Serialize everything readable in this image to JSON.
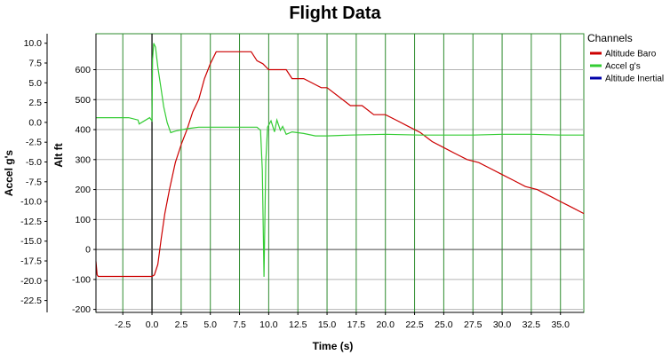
{
  "chart_data": {
    "type": "line",
    "title": "Flight Data",
    "xlabel": "Time (s)",
    "ylabel_left": "Accel g's",
    "ylabel_right": "Alt ft",
    "xlim": [
      -4.8,
      37
    ],
    "ylim_alt": [
      -210,
      720
    ],
    "ylim_accel": [
      -24,
      11.2
    ],
    "x_ticks": [
      "-2.5",
      "0.0",
      "2.5",
      "5.0",
      "7.5",
      "10.0",
      "12.5",
      "15.0",
      "17.5",
      "20.0",
      "22.5",
      "25.0",
      "27.5",
      "30.0",
      "32.5",
      "35.0"
    ],
    "accel_ticks": [
      "10.0",
      "7.5",
      "5.0",
      "2.5",
      "0.0",
      "-2.5",
      "-5.0",
      "-7.5",
      "-10.0",
      "-12.5",
      "-15.0",
      "-17.5",
      "-20.0",
      "-22.5"
    ],
    "alt_ticks": [
      "600",
      "500",
      "400",
      "300",
      "200",
      "100",
      "0",
      "-100",
      "-200"
    ],
    "grid": true,
    "legend": {
      "title": "Channels",
      "position": "top-right"
    },
    "series": [
      {
        "name": "Altitude Baro",
        "axis": "alt",
        "color": "#cc0000",
        "x": [
          -4.8,
          -4.7,
          -4.6,
          -1.0,
          0.0,
          0.2,
          0.5,
          0.8,
          1.1,
          1.5,
          2.0,
          2.5,
          3.0,
          3.5,
          4.0,
          4.5,
          5.0,
          5.5,
          6.0,
          6.5,
          7.0,
          7.5,
          8.0,
          8.5,
          9.0,
          9.5,
          10.0,
          10.5,
          11.0,
          11.5,
          12.0,
          12.5,
          13.0,
          13.5,
          14.0,
          14.5,
          15.0,
          16.0,
          17.0,
          18.0,
          19.0,
          20.0,
          21.0,
          22.0,
          23.0,
          24.0,
          25.0,
          26.0,
          27.0,
          28.0,
          29.0,
          30.0,
          31.0,
          32.0,
          33.0,
          34.0,
          35.0,
          36.0,
          37.0
        ],
        "y": [
          -40,
          -85,
          -90,
          -90,
          -90,
          -85,
          -50,
          40,
          120,
          200,
          290,
          350,
          400,
          460,
          500,
          570,
          620,
          660,
          660,
          660,
          660,
          660,
          660,
          660,
          630,
          620,
          600,
          600,
          600,
          600,
          570,
          570,
          570,
          560,
          550,
          540,
          540,
          510,
          480,
          480,
          450,
          450,
          430,
          410,
          390,
          360,
          340,
          320,
          300,
          290,
          270,
          250,
          230,
          210,
          200,
          180,
          160,
          140,
          120
        ]
      },
      {
        "name": "Accel g's",
        "axis": "accel",
        "color": "#33cc33",
        "x": [
          -4.8,
          -2.0,
          -1.2,
          -1.1,
          -0.2,
          0.0,
          0.05,
          0.15,
          0.3,
          0.5,
          0.8,
          1.0,
          1.3,
          1.6,
          2.0,
          3.0,
          4.0,
          6.0,
          8.0,
          9.0,
          9.3,
          9.45,
          9.6,
          9.75,
          9.9,
          10.2,
          10.5,
          10.7,
          11.0,
          11.2,
          11.5,
          12.0,
          13.0,
          14.0,
          15.0,
          17.0,
          20.0,
          23.0,
          25.0,
          27.5,
          30.0,
          32.5,
          35.0,
          37.0
        ],
        "y": [
          0.6,
          0.6,
          0.3,
          -0.2,
          0.6,
          0.2,
          8.0,
          10.0,
          9.5,
          7.0,
          4.0,
          2.0,
          0.0,
          -1.3,
          -1.1,
          -0.8,
          -0.6,
          -0.6,
          -0.6,
          -0.6,
          -1.0,
          -6.0,
          -19.5,
          -5.0,
          -0.6,
          0.2,
          -1.2,
          0.3,
          -1.0,
          -0.5,
          -1.5,
          -1.2,
          -1.4,
          -1.7,
          -1.7,
          -1.6,
          -1.5,
          -1.6,
          -1.6,
          -1.6,
          -1.5,
          -1.5,
          -1.6,
          -1.6
        ]
      },
      {
        "name": "Altitude Inertial",
        "axis": "alt",
        "color": "#0000aa",
        "x": [],
        "y": []
      }
    ]
  }
}
